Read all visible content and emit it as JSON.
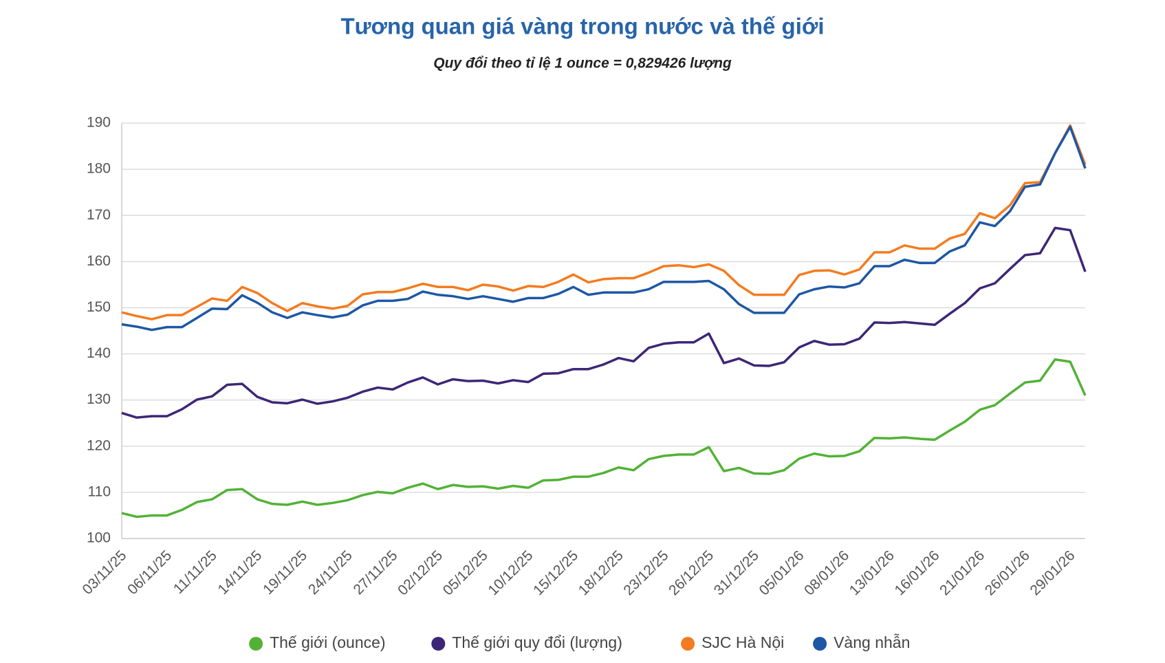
{
  "chart_data": {
    "type": "line",
    "title": "Tương quan giá vàng trong nước và thế giới",
    "subtitle": "Quy đổi theo tỉ lệ 1 ounce = 0,829426 lượng",
    "categories": [
      "03/11/25",
      null,
      null,
      "06/11/25",
      null,
      null,
      "11/11/25",
      null,
      null,
      "14/11/25",
      null,
      null,
      "19/11/25",
      null,
      null,
      "24/11/25",
      null,
      null,
      "27/11/25",
      null,
      null,
      "02/12/25",
      null,
      null,
      "05/12/25",
      null,
      null,
      "10/12/25",
      null,
      null,
      "15/12/25",
      null,
      null,
      "18/12/25",
      null,
      null,
      "23/12/25",
      null,
      null,
      "26/12/25",
      null,
      null,
      "31/12/25",
      null,
      null,
      "05/01/26",
      null,
      null,
      "08/01/26",
      null,
      null,
      "13/01/26",
      null,
      null,
      "16/01/26",
      null,
      null,
      "21/01/26",
      null,
      null,
      "26/01/26",
      null,
      null,
      "29/01/26",
      null
    ],
    "ylim": [
      100,
      190
    ],
    "yticks": [
      100,
      110,
      120,
      130,
      140,
      150,
      160,
      170,
      180,
      190
    ],
    "grid": true,
    "legend": "bottom",
    "series": [
      {
        "name": "Thế giới (ounce)",
        "color": "#52b236",
        "values": [
          105.5,
          104.7,
          105,
          105,
          106.2,
          107.9,
          108.5,
          110.5,
          110.7,
          108.5,
          107.5,
          107.3,
          108,
          107.3,
          107.7,
          108.3,
          109.4,
          110.1,
          109.8,
          111,
          111.9,
          110.7,
          111.6,
          111.2,
          111.3,
          110.8,
          111.4,
          111,
          112.6,
          112.7,
          113.4,
          113.4,
          114.2,
          115.4,
          114.8,
          117.2,
          117.9,
          118.2,
          118.2,
          119.8,
          114.6,
          115.3,
          114.1,
          114,
          114.8,
          117.3,
          118.4,
          117.8,
          117.9,
          118.9,
          121.8,
          121.7,
          121.9,
          121.6,
          121.4,
          123.4,
          125.3,
          127.9,
          128.9,
          131.4,
          133.8,
          134.2,
          138.8,
          138.3,
          131
        ]
      },
      {
        "name": "Thế giới quy đổi (lượng)",
        "color": "#3d2677",
        "values": [
          127.2,
          126.2,
          126.5,
          126.5,
          128,
          130.1,
          130.8,
          133.3,
          133.5,
          130.7,
          129.5,
          129.3,
          130.1,
          129.2,
          129.7,
          130.5,
          131.8,
          132.7,
          132.3,
          133.8,
          134.9,
          133.4,
          134.5,
          134.1,
          134.2,
          133.6,
          134.3,
          133.9,
          135.7,
          135.8,
          136.7,
          136.7,
          137.7,
          139.1,
          138.4,
          141.3,
          142.2,
          142.5,
          142.5,
          144.4,
          138,
          139,
          137.5,
          137.4,
          138.2,
          141.4,
          142.8,
          142,
          142.1,
          143.3,
          146.8,
          146.7,
          146.9,
          146.6,
          146.3,
          148.7,
          151,
          154.2,
          155.3,
          158.4,
          161.4,
          161.8,
          167.3,
          166.8,
          157.8
        ]
      },
      {
        "name": "SJC Hà Nội",
        "color": "#f47b20",
        "values": [
          149,
          148.2,
          147.5,
          148.4,
          148.4,
          150.2,
          152,
          151.5,
          154.5,
          153.2,
          151,
          149.3,
          151,
          150.3,
          149.8,
          150.4,
          152.9,
          153.4,
          153.4,
          154.2,
          155.2,
          154.5,
          154.5,
          153.8,
          155,
          154.6,
          153.7,
          154.7,
          154.5,
          155.6,
          157.2,
          155.5,
          156.2,
          156.4,
          156.4,
          157.6,
          159,
          159.2,
          158.8,
          159.4,
          158,
          154.9,
          152.8,
          152.8,
          152.8,
          157.1,
          158,
          158.1,
          157.2,
          158.3,
          162,
          162,
          163.5,
          162.8,
          162.8,
          165,
          166,
          170.5,
          169.4,
          172.2,
          177,
          177.2,
          183.5,
          189.5,
          181
        ]
      },
      {
        "name": "Vàng nhẫn",
        "color": "#1d57a5",
        "values": [
          146.4,
          145.9,
          145.2,
          145.8,
          145.8,
          147.8,
          149.8,
          149.7,
          152.7,
          151.1,
          149,
          147.8,
          149,
          148.4,
          147.9,
          148.5,
          150.5,
          151.5,
          151.5,
          151.9,
          153.5,
          152.8,
          152.5,
          151.9,
          152.5,
          151.9,
          151.3,
          152.1,
          152.1,
          153,
          154.5,
          152.8,
          153.3,
          153.3,
          153.3,
          154,
          155.6,
          155.6,
          155.6,
          155.8,
          154,
          150.8,
          148.9,
          148.9,
          148.9,
          152.9,
          154,
          154.6,
          154.4,
          155.3,
          159,
          159,
          160.4,
          159.7,
          159.7,
          162.2,
          163.5,
          168.5,
          167.7,
          170.9,
          176.2,
          176.7,
          183.5,
          189.2,
          180.2
        ]
      }
    ]
  }
}
